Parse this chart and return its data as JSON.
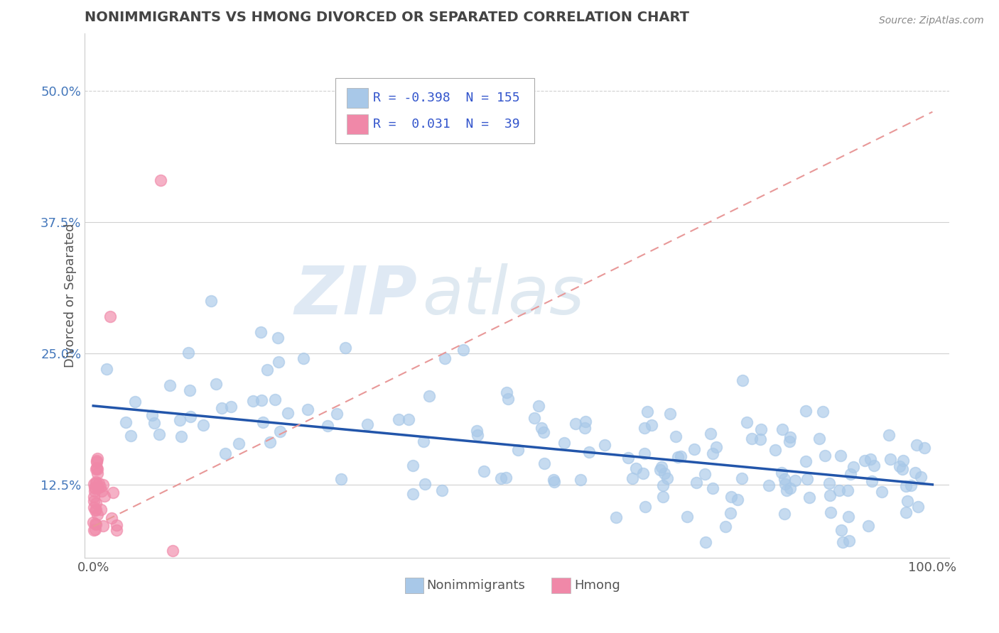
{
  "title": "NONIMMIGRANTS VS HMONG DIVORCED OR SEPARATED CORRELATION CHART",
  "source": "Source: ZipAtlas.com",
  "ylabel": "Divorced or Separated",
  "legend": {
    "series1_label": "Nonimmigrants",
    "series2_label": "Hmong",
    "r1": "-0.398",
    "n1": "155",
    "r2": "0.031",
    "n2": "39"
  },
  "nonimmigrant_color": "#a8c8e8",
  "hmong_color": "#f088a8",
  "trend1_color": "#2255aa",
  "trend2_color": "#e89898",
  "watermark_zip": "ZIP",
  "watermark_atlas": "atlas",
  "background_color": "#ffffff",
  "grid_color": "#d0d0d0",
  "title_color": "#444444",
  "ytick_vals": [
    0.125,
    0.25,
    0.375,
    0.5
  ],
  "ytick_labels": [
    "12.5%",
    "25.0%",
    "37.5%",
    "50.0%"
  ],
  "ylim": [
    0.055,
    0.555
  ],
  "xlim": [
    -0.01,
    1.02
  ]
}
